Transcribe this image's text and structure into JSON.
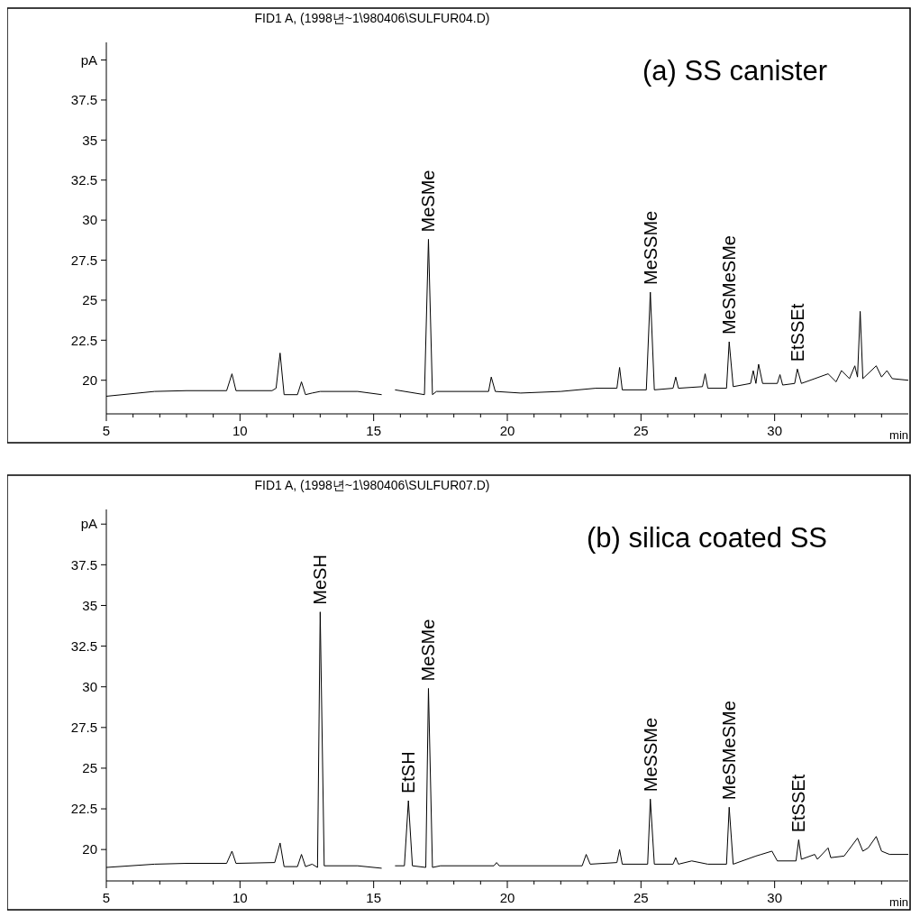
{
  "chart_data": [
    {
      "type": "line",
      "title": "FID1 A,  (1998년~1\\980406\\SULFUR04.D)",
      "subtitle": "(a) SS canister",
      "xlabel": "min",
      "xlim": [
        5,
        35
      ],
      "ylim": [
        17.9,
        41.1
      ],
      "xticks": [
        5,
        {
          "value": 6,
          "label": null
        },
        {
          "value": 7,
          "label": null
        },
        {
          "value": 8,
          "label": null
        },
        {
          "value": 9,
          "label": null
        },
        10,
        {
          "value": 11,
          "label": null
        },
        {
          "value": 12,
          "label": null
        },
        {
          "value": 13,
          "label": null
        },
        {
          "value": 14,
          "label": null
        },
        15,
        {
          "value": 16,
          "label": null
        },
        {
          "value": 17,
          "label": null
        },
        {
          "value": 18,
          "label": null
        },
        {
          "value": 19,
          "label": null
        },
        20,
        {
          "value": 21,
          "label": null
        },
        {
          "value": 22,
          "label": null
        },
        {
          "value": 23,
          "label": null
        },
        {
          "value": 24,
          "label": null
        },
        25,
        {
          "value": 26,
          "label": null
        },
        {
          "value": 27,
          "label": null
        },
        {
          "value": 28,
          "label": null
        },
        {
          "value": 29,
          "label": null
        },
        30,
        {
          "value": 31,
          "label": null
        },
        {
          "value": 32,
          "label": null
        },
        {
          "value": 33,
          "label": null
        },
        {
          "value": 34,
          "label": null
        }
      ],
      "yticks": [
        20,
        22.5,
        25,
        27.5,
        30,
        32.5,
        35,
        37.5,
        {
          "value": 40,
          "label": "pA"
        }
      ],
      "grid": false,
      "marker": "none",
      "line_style": "solid",
      "series": [
        {
          "color": "#000000",
          "x": [
            5,
            6.8,
            8,
            9.5,
            9.7,
            9.85,
            11.2,
            11.35,
            11.5,
            11.65,
            12.15,
            12.3,
            12.45,
            12.7,
            13,
            14.4,
            15.3,
            15.45,
            15.6,
            15.8,
            16.9,
            17.05,
            17.2,
            17.35,
            19.3,
            19.4,
            19.55,
            20.5,
            22,
            23.3,
            24.1,
            24.2,
            24.3,
            25.2,
            25.35,
            25.5,
            26.2,
            26.3,
            26.4,
            27.3,
            27.4,
            27.5,
            28.2,
            28.3,
            28.45,
            29.1,
            29.2,
            29.3,
            29.4,
            29.55,
            30.1,
            30.2,
            30.3,
            30.75,
            30.85,
            31,
            32,
            32.3,
            32.5,
            32.8,
            33,
            33.1,
            33.2,
            33.3,
            33.8,
            34,
            34.2,
            34.4,
            35
          ],
          "values": [
            19.0,
            19.3,
            19.35,
            19.35,
            20.4,
            19.35,
            19.35,
            19.5,
            21.7,
            19.1,
            19.1,
            19.9,
            19.1,
            19.2,
            19.3,
            19.3,
            19.1,
            null,
            null,
            19.4,
            19.1,
            28.8,
            19.1,
            19.3,
            19.3,
            20.2,
            19.3,
            19.2,
            19.3,
            19.5,
            19.5,
            20.8,
            19.4,
            19.4,
            25.5,
            19.4,
            19.5,
            20.2,
            19.5,
            19.6,
            20.4,
            19.5,
            19.5,
            22.4,
            19.6,
            19.8,
            20.6,
            19.8,
            21.0,
            19.8,
            19.8,
            20.35,
            19.7,
            19.8,
            20.7,
            19.8,
            20.4,
            19.9,
            20.6,
            20.1,
            20.9,
            20.2,
            24.3,
            20.1,
            20.9,
            20.2,
            20.6,
            20.1,
            20.0
          ]
        }
      ],
      "annotations": [
        {
          "text": "MeSMe",
          "x": 17.05,
          "y": 28.8
        },
        {
          "text": "MeSSMe",
          "x": 25.35,
          "y": 25.5
        },
        {
          "text": "MeSMeSMe",
          "x": 28.3,
          "y": 22.4
        },
        {
          "text": "EtSSEt",
          "x": 30.85,
          "y": 20.7
        }
      ]
    },
    {
      "type": "line",
      "title": "FID1 A,  (1998년~1\\980406\\SULFUR07.D)",
      "subtitle": "(b) silica coated SS",
      "xlabel": "min",
      "xlim": [
        5,
        35
      ],
      "ylim": [
        18.07,
        40.9
      ],
      "xticks": [
        5,
        {
          "value": 6,
          "label": null
        },
        {
          "value": 7,
          "label": null
        },
        {
          "value": 8,
          "label": null
        },
        {
          "value": 9,
          "label": null
        },
        10,
        {
          "value": 11,
          "label": null
        },
        {
          "value": 12,
          "label": null
        },
        {
          "value": 13,
          "label": null
        },
        {
          "value": 14,
          "label": null
        },
        15,
        {
          "value": 16,
          "label": null
        },
        {
          "value": 17,
          "label": null
        },
        {
          "value": 18,
          "label": null
        },
        {
          "value": 19,
          "label": null
        },
        20,
        {
          "value": 21,
          "label": null
        },
        {
          "value": 22,
          "label": null
        },
        {
          "value": 23,
          "label": null
        },
        {
          "value": 24,
          "label": null
        },
        25,
        {
          "value": 26,
          "label": null
        },
        {
          "value": 27,
          "label": null
        },
        {
          "value": 28,
          "label": null
        },
        {
          "value": 29,
          "label": null
        },
        30,
        {
          "value": 31,
          "label": null
        },
        {
          "value": 32,
          "label": null
        },
        {
          "value": 33,
          "label": null
        },
        {
          "value": 34,
          "label": null
        }
      ],
      "yticks": [
        20,
        22.5,
        25,
        27.5,
        30,
        32.5,
        35,
        37.5,
        {
          "value": 40,
          "label": "pA"
        }
      ],
      "grid": false,
      "marker": "none",
      "line_style": "solid",
      "series": [
        {
          "color": "#000000",
          "x": [
            5,
            6.8,
            8,
            9.5,
            9.7,
            9.85,
            11.3,
            11.5,
            11.65,
            12.15,
            12.3,
            12.45,
            12.7,
            12.9,
            13.0,
            13.15,
            14.4,
            15.3,
            15.45,
            15.6,
            15.8,
            16.15,
            16.3,
            16.45,
            16.95,
            17.05,
            17.2,
            17.5,
            19.5,
            19.6,
            19.7,
            22.8,
            22.95,
            23.1,
            24.1,
            24.2,
            24.3,
            25.25,
            25.35,
            25.5,
            26.2,
            26.3,
            26.4,
            26.9,
            27.5,
            28.2,
            28.3,
            28.45,
            29.3,
            29.5,
            29.9,
            30.1,
            30.8,
            30.9,
            31.0,
            31.5,
            31.6,
            32.0,
            32.1,
            32.6,
            33.1,
            33.3,
            33.5,
            33.8,
            34.0,
            34.3,
            35
          ],
          "values": [
            18.9,
            19.1,
            19.15,
            19.15,
            19.9,
            19.15,
            19.2,
            20.4,
            18.95,
            18.95,
            19.7,
            18.95,
            19.1,
            18.9,
            34.6,
            19.0,
            19.0,
            18.85,
            null,
            null,
            19.0,
            19.0,
            23.0,
            19.0,
            18.9,
            29.9,
            18.9,
            19.0,
            19.0,
            19.2,
            19.0,
            19.0,
            19.7,
            19.1,
            19.2,
            20.0,
            19.1,
            19.1,
            23.1,
            19.1,
            19.1,
            19.5,
            19.1,
            19.3,
            19.1,
            19.1,
            22.6,
            19.1,
            19.6,
            19.7,
            19.9,
            19.3,
            19.3,
            20.6,
            19.4,
            19.7,
            19.4,
            20.1,
            19.5,
            19.6,
            20.7,
            19.9,
            20.1,
            20.8,
            19.9,
            19.7,
            19.7
          ]
        }
      ],
      "annotations": [
        {
          "text": "MeSH",
          "x": 13.0,
          "y": 34.6
        },
        {
          "text": "EtSH",
          "x": 16.3,
          "y": 23.0
        },
        {
          "text": "MeSMe",
          "x": 17.05,
          "y": 29.9
        },
        {
          "text": "MeSSMe",
          "x": 25.35,
          "y": 23.1
        },
        {
          "text": "MeSMeSMe",
          "x": 28.3,
          "y": 22.6
        },
        {
          "text": "EtSSEt",
          "x": 30.9,
          "y": 20.6
        }
      ]
    }
  ]
}
